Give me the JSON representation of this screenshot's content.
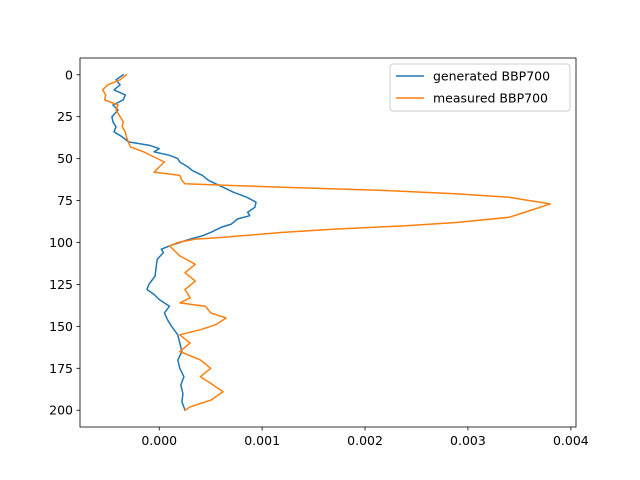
{
  "chart_data": {
    "type": "line",
    "title": "",
    "xlabel": "",
    "ylabel": "",
    "xlim": [
      -0.00077,
      0.00405
    ],
    "ylim": [
      210,
      -10
    ],
    "y_inverted": true,
    "grid": false,
    "legend": {
      "placement": "top-right"
    },
    "x_ticks": [
      0,
      0.001,
      0.002,
      0.003,
      0.004
    ],
    "x_tick_labels": [
      "0.000",
      "0.001",
      "0.002",
      "0.003",
      "0.004"
    ],
    "y_ticks": [
      0,
      25,
      50,
      75,
      100,
      125,
      150,
      175,
      200
    ],
    "y_tick_labels": [
      "0",
      "25",
      "50",
      "75",
      "100",
      "125",
      "150",
      "175",
      "200"
    ],
    "series": [
      {
        "name": "generated BBP700",
        "color": "#1f77b4",
        "points": [
          [
            -0.00035,
            0
          ],
          [
            -0.00042,
            3
          ],
          [
            -0.00038,
            6
          ],
          [
            -0.00044,
            9
          ],
          [
            -0.00033,
            12
          ],
          [
            -0.00035,
            15
          ],
          [
            -0.00045,
            18
          ],
          [
            -0.0004,
            21
          ],
          [
            -0.00046,
            25
          ],
          [
            -0.00045,
            28
          ],
          [
            -0.00042,
            31
          ],
          [
            -0.00044,
            34
          ],
          [
            -0.00036,
            37
          ],
          [
            -0.0003,
            40
          ],
          [
            -0.0001,
            42
          ],
          [
            0.0,
            44
          ],
          [
            -5e-05,
            46
          ],
          [
            0.0001,
            48
          ],
          [
            0.00018,
            50
          ],
          [
            0.0002,
            52
          ],
          [
            0.00028,
            55
          ],
          [
            0.00032,
            57
          ],
          [
            0.00042,
            60
          ],
          [
            0.00048,
            63
          ],
          [
            0.00055,
            65
          ],
          [
            0.00062,
            67
          ],
          [
            0.00072,
            70
          ],
          [
            0.00085,
            73
          ],
          [
            0.00094,
            76
          ],
          [
            0.00093,
            79
          ],
          [
            0.00086,
            82
          ],
          [
            0.00088,
            84
          ],
          [
            0.00076,
            86
          ],
          [
            0.0007,
            89
          ],
          [
            0.0006,
            91
          ],
          [
            0.0005,
            94
          ],
          [
            0.00042,
            96
          ],
          [
            0.0003,
            98
          ],
          [
            0.0002,
            100
          ],
          [
            0.0001,
            102
          ],
          [
            2e-05,
            104
          ],
          [
            4e-05,
            106
          ],
          [
            -2e-05,
            110
          ],
          [
            -3e-05,
            115
          ],
          [
            -4e-05,
            120
          ],
          [
            -0.0001,
            125
          ],
          [
            -0.00012,
            128
          ],
          [
            -5e-05,
            131
          ],
          [
            0.0,
            134
          ],
          [
            0.0001,
            138
          ],
          [
            5e-05,
            142
          ],
          [
            8e-05,
            146
          ],
          [
            0.00012,
            150
          ],
          [
            0.00018,
            155
          ],
          [
            0.0002,
            160
          ],
          [
            0.00022,
            165
          ],
          [
            0.00018,
            170
          ],
          [
            0.0002,
            175
          ],
          [
            0.00024,
            180
          ],
          [
            0.00021,
            185
          ],
          [
            0.00023,
            190
          ],
          [
            0.00022,
            195
          ],
          [
            0.00025,
            200
          ]
        ]
      },
      {
        "name": "measured BBP700",
        "color": "#ff7f0e",
        "points": [
          [
            -0.00032,
            0
          ],
          [
            -0.00038,
            3
          ],
          [
            -0.0005,
            6
          ],
          [
            -0.00055,
            9
          ],
          [
            -0.00052,
            12
          ],
          [
            -0.00053,
            15
          ],
          [
            -0.0004,
            18
          ],
          [
            -0.00042,
            21
          ],
          [
            -0.00038,
            25
          ],
          [
            -0.00035,
            28
          ],
          [
            -0.00036,
            31
          ],
          [
            -0.00033,
            34
          ],
          [
            -0.00032,
            37
          ],
          [
            -0.0003,
            40
          ],
          [
            -0.00028,
            43
          ],
          [
            -0.00015,
            46
          ],
          [
            -5e-05,
            49
          ],
          [
            5e-05,
            52
          ],
          [
            0.0,
            55
          ],
          [
            -5e-05,
            58
          ],
          [
            0.0002,
            60
          ],
          [
            0.00022,
            63
          ],
          [
            0.00025,
            65
          ],
          [
            0.0007,
            66
          ],
          [
            0.0012,
            67
          ],
          [
            0.0022,
            69
          ],
          [
            0.0029,
            71
          ],
          [
            0.0034,
            73
          ],
          [
            0.0036,
            75
          ],
          [
            0.0038,
            77
          ],
          [
            0.0037,
            79
          ],
          [
            0.0036,
            81
          ],
          [
            0.0035,
            83
          ],
          [
            0.0034,
            85
          ],
          [
            0.0029,
            88
          ],
          [
            0.0024,
            90
          ],
          [
            0.0017,
            92
          ],
          [
            0.0012,
            94
          ],
          [
            0.0008,
            96
          ],
          [
            0.0006,
            97
          ],
          [
            0.00035,
            98
          ],
          [
            0.00018,
            100
          ],
          [
            0.0001,
            102
          ],
          [
            0.0002,
            108
          ],
          [
            0.00035,
            113
          ],
          [
            0.00025,
            118
          ],
          [
            0.00035,
            123
          ],
          [
            0.00025,
            128
          ],
          [
            0.0003,
            133
          ],
          [
            0.0002,
            136
          ],
          [
            0.00045,
            138
          ],
          [
            0.0005,
            142
          ],
          [
            0.00065,
            145
          ],
          [
            0.00055,
            149
          ],
          [
            0.0004,
            152
          ],
          [
            0.0002,
            155
          ],
          [
            0.0003,
            160
          ],
          [
            0.0002,
            165
          ],
          [
            0.0004,
            170
          ],
          [
            0.0005,
            175
          ],
          [
            0.0004,
            180
          ],
          [
            0.0005,
            184
          ],
          [
            0.00062,
            189
          ],
          [
            0.0005,
            194
          ],
          [
            0.0004,
            196
          ],
          [
            0.0003,
            198
          ],
          [
            0.00025,
            200
          ]
        ]
      }
    ]
  }
}
